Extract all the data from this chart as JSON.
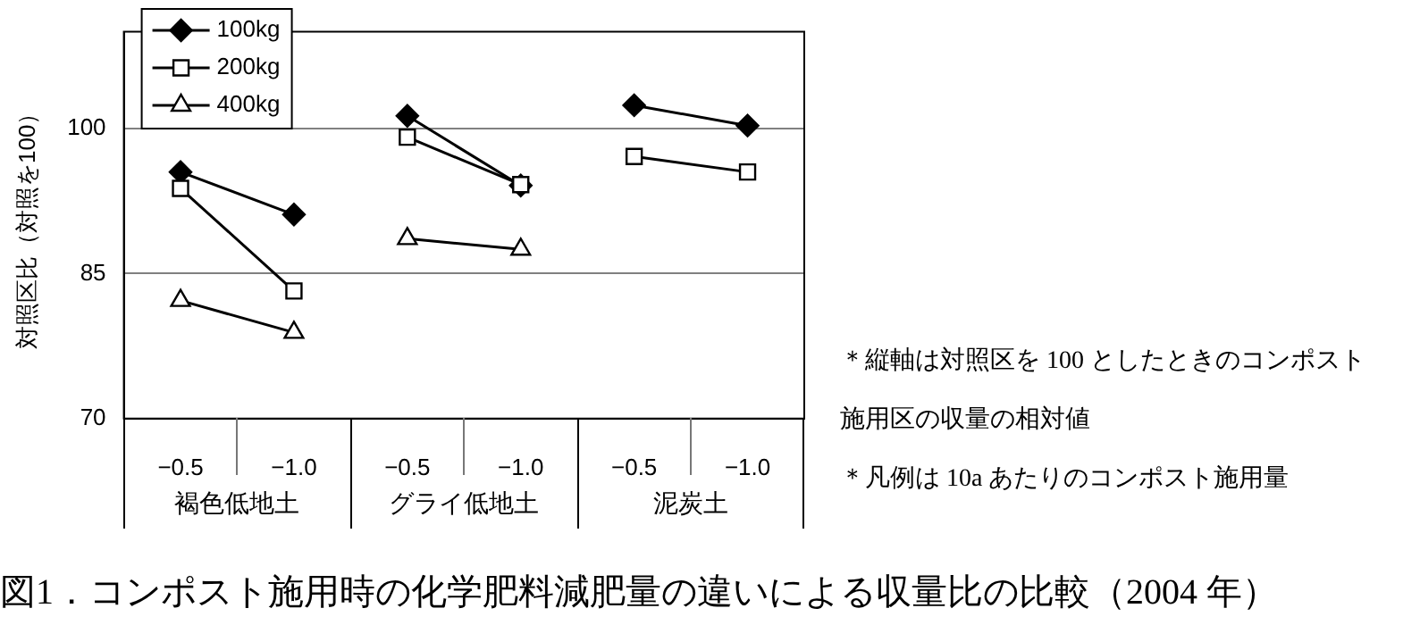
{
  "chart_data": {
    "type": "line",
    "title": "図1．コンポスト施用時の化学肥料減肥量の違いによる収量比の比較（2004 年）",
    "ylabel": "対照区比（対照を100）",
    "categories": [
      "−0.5",
      "−1.0",
      "−0.5",
      "−1.0",
      "−0.5",
      "−1.0"
    ],
    "series": [
      {
        "name": "100kg",
        "color": "#000000",
        "marker": "diamond",
        "values": [
          95.5,
          91.1,
          101.3,
          94.1,
          102.4,
          100.3
        ]
      },
      {
        "name": "200kg",
        "color": "#000000",
        "marker": "square",
        "values": [
          93.8,
          83.2,
          99.1,
          94.2,
          97.1,
          95.5
        ]
      },
      {
        "name": "400kg",
        "color": "#000000",
        "marker": "triangle",
        "values": [
          82.2,
          78.9,
          88.6,
          87.5,
          null,
          null
        ]
      }
    ],
    "ylim": [
      70,
      110
    ],
    "yticks": [
      70,
      85,
      100
    ],
    "grid": "y",
    "legend": "top left",
    "line_style": "solid",
    "annotations": [
      "褐色低地土",
      "グライ低地土",
      "泥炭土",
      "＊縦軸は対照区を 100 としたときのコンポスト施用区の収量の相対値",
      "＊凡例は 10a あたりのコンポスト施用量"
    ]
  }
}
